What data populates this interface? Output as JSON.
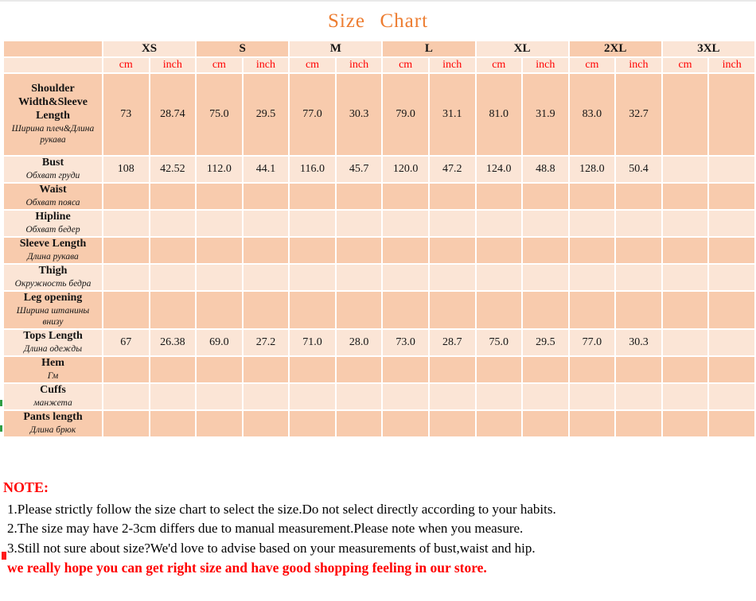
{
  "title": "Size Chart",
  "colors": {
    "title_orange": "#ed7d31",
    "cell_dark_peach": "#f8cbad",
    "cell_light_peach": "#fbe5d6",
    "unit_red": "#ff0000",
    "note_red": "#ff0000",
    "gridline_white": "#ffffff"
  },
  "table": {
    "corner_label": "",
    "sizes": [
      "XS",
      "S",
      "M",
      "L",
      "XL",
      "2XL",
      "3XL"
    ],
    "units": [
      "cm",
      "inch"
    ],
    "rows": [
      {
        "label": "Shoulder Width&Sleeve Length",
        "label_ru": "Ширина плеч&Длина рукава",
        "values": [
          "73",
          "28.74",
          "75.0",
          "29.5",
          "77.0",
          "30.3",
          "79.0",
          "31.1",
          "81.0",
          "31.9",
          "83.0",
          "32.7",
          "",
          ""
        ]
      },
      {
        "label": "Bust",
        "label_ru": "Обхват груди",
        "values": [
          "108",
          "42.52",
          "112.0",
          "44.1",
          "116.0",
          "45.7",
          "120.0",
          "47.2",
          "124.0",
          "48.8",
          "128.0",
          "50.4",
          "",
          ""
        ]
      },
      {
        "label": "Waist",
        "label_ru": "Обхват пояса",
        "values": [
          "",
          "",
          "",
          "",
          "",
          "",
          "",
          "",
          "",
          "",
          "",
          "",
          "",
          ""
        ]
      },
      {
        "label": "Hipline",
        "label_ru": "Обхват бедер",
        "values": [
          "",
          "",
          "",
          "",
          "",
          "",
          "",
          "",
          "",
          "",
          "",
          "",
          "",
          ""
        ]
      },
      {
        "label": "Sleeve Length",
        "label_ru": "Длина рукава",
        "values": [
          "",
          "",
          "",
          "",
          "",
          "",
          "",
          "",
          "",
          "",
          "",
          "",
          "",
          ""
        ]
      },
      {
        "label": "Thigh",
        "label_ru": "Окружность бедра",
        "values": [
          "",
          "",
          "",
          "",
          "",
          "",
          "",
          "",
          "",
          "",
          "",
          "",
          "",
          ""
        ]
      },
      {
        "label": "Leg opening",
        "label_ru": "Ширина штанины внизу",
        "values": [
          "",
          "",
          "",
          "",
          "",
          "",
          "",
          "",
          "",
          "",
          "",
          "",
          "",
          ""
        ]
      },
      {
        "label": "Tops Length",
        "label_ru": "Длина одежды",
        "values": [
          "67",
          "26.38",
          "69.0",
          "27.2",
          "71.0",
          "28.0",
          "73.0",
          "28.7",
          "75.0",
          "29.5",
          "77.0",
          "30.3",
          "",
          ""
        ]
      },
      {
        "label": "Hem",
        "label_ru": "Гм",
        "values": [
          "",
          "",
          "",
          "",
          "",
          "",
          "",
          "",
          "",
          "",
          "",
          "",
          "",
          ""
        ]
      },
      {
        "label": "Cuffs",
        "label_ru": "манжета",
        "values": [
          "",
          "",
          "",
          "",
          "",
          "",
          "",
          "",
          "",
          "",
          "",
          "",
          "",
          ""
        ]
      },
      {
        "label": "Pants length",
        "label_ru": "Длина брюк",
        "values": [
          "",
          "",
          "",
          "",
          "",
          "",
          "",
          "",
          "",
          "",
          "",
          "",
          "",
          ""
        ]
      }
    ]
  },
  "note": {
    "heading": "NOTE:",
    "lines": [
      "1.Please strictly follow the size chart to select the size.Do not select directly according to your habits.",
      "2.The size may have 2-3cm differs due to manual measurement.Please note when you measure.",
      "3.Still not sure about size?We'd love to advise based on your measurements of bust,waist and hip."
    ],
    "footer": "we really hope you can get right size and have good shopping feeling in our store."
  }
}
